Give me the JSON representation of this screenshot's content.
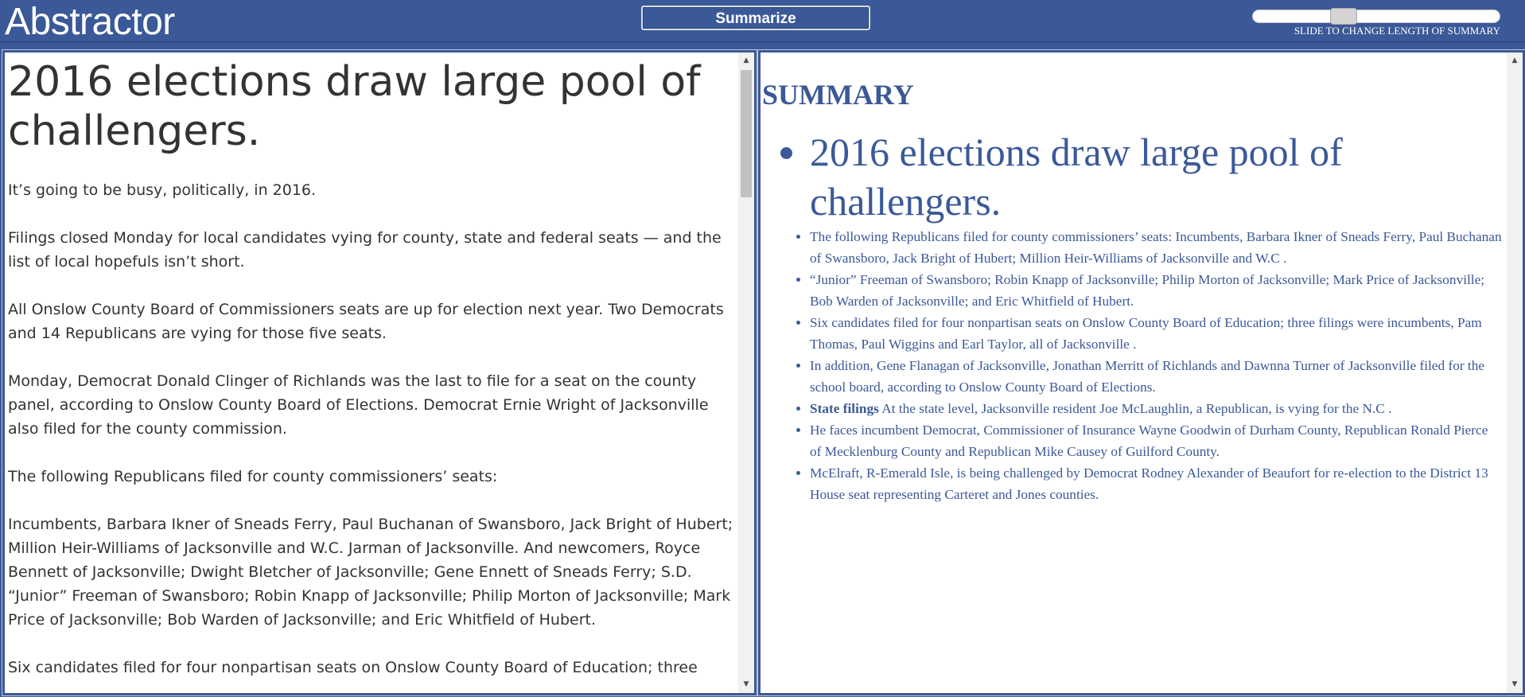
{
  "app": {
    "title": "Abstractor",
    "summarize_label": "Summarize",
    "slider_caption": "SLIDE TO CHANGE LENGTH OF SUMMARY",
    "slider_level": 0.35
  },
  "article": {
    "headline": "2016 elections draw large pool of challengers.",
    "paragraphs": [
      "It’s going to be busy, politically, in 2016.",
      "Filings closed Monday for local candidates vying for county, state and federal seats — and the list of local hopefuls isn’t short.",
      "All Onslow County Board of Commissioners seats are up for election next year. Two Democrats and 14 Republicans are vying for those five seats.",
      "Monday, Democrat Donald Clinger of Richlands was the last to file for a seat on the county panel, according to Onslow County Board of Elections. Democrat Ernie Wright of Jacksonville also filed for the county commission.",
      "The following Republicans filed for county commissioners’ seats:",
      "Incumbents, Barbara Ikner of Sneads Ferry, Paul Buchanan of Swansboro, Jack Bright of Hubert; Million Heir-Williams of Jacksonville and W.C. Jarman of Jacksonville. And newcomers, Royce Bennett of Jacksonville; Dwight Bletcher of Jacksonville; Gene Ennett of Sneads Ferry; S.D. “Junior” Freeman of Swansboro; Robin Knapp of Jacksonville; Philip Morton of Jacksonville; Mark Price of Jacksonville; Bob Warden of Jacksonville; and Eric Whitfield of Hubert.",
      "Six candidates filed for four nonpartisan seats on Onslow County Board of Education; three"
    ]
  },
  "summary": {
    "heading": "SUMMARY",
    "headline": "2016 elections draw large pool of challengers.",
    "items": [
      "The following Republicans filed for county commissioners’ seats: Incumbents, Barbara Ikner of Sneads Ferry, Paul Buchanan of Swansboro, Jack Bright of Hubert; Million Heir-Williams of Jacksonville and W.C .",
      "“Junior” Freeman of Swansboro; Robin Knapp of Jacksonville; Philip Morton of Jacksonville; Mark Price of Jacksonville; Bob Warden of Jacksonville; and Eric Whitfield of Hubert.",
      "Six candidates filed for four nonpartisan seats on Onslow County Board of Education; three filings were incumbents, Pam Thomas, Paul Wiggins and Earl Taylor, all of Jacksonville .",
      "In addition, Gene Flanagan of Jacksonville, Jonathan Merritt of Richlands and Dawnna Turner of Jacksonville filed for the school board, according to Onslow County Board of Elections.",
      "At the state level, Jacksonville resident Joe McLaughlin, a Republican, is vying for the N.C .",
      "He faces incumbent Democrat, Commissioner of Insurance Wayne Goodwin of Durham County, Republican Ronald Pierce of Mecklenburg County and Republican Mike Causey of Guilford County.",
      "McElraft, R-Emerald Isle, is being challenged by Democrat Rodney Alexander of Beaufort for re-election to the District 13 House seat representing Carteret and Jones counties."
    ],
    "bold_prefix": "State filings"
  },
  "scrollbar": {
    "up_icon": "▲",
    "down_icon": "▼"
  }
}
